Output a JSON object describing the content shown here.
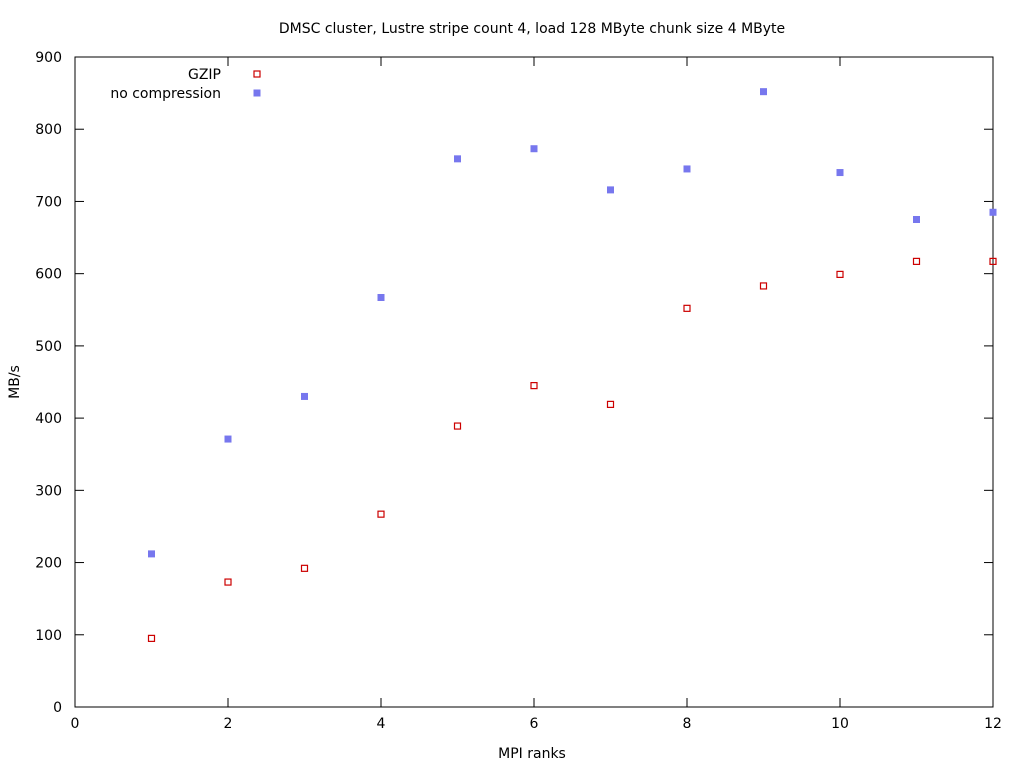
{
  "chart_data": {
    "type": "scatter",
    "title": "DMSC cluster, Lustre stripe count 4, load 128 MByte chunk size 4 MByte",
    "xlabel": "MPI ranks",
    "ylabel": "MB/s",
    "xlim": [
      0,
      12
    ],
    "ylim": [
      0,
      900
    ],
    "xticks": [
      0,
      2,
      4,
      6,
      8,
      10,
      12
    ],
    "yticks": [
      0,
      100,
      200,
      300,
      400,
      500,
      600,
      700,
      800,
      900
    ],
    "grid": false,
    "legend_position": "top-left",
    "series": [
      {
        "name": "GZIP",
        "marker": "open-square",
        "color": "#cc0000",
        "points": [
          [
            1,
            95
          ],
          [
            2,
            173
          ],
          [
            3,
            192
          ],
          [
            4,
            267
          ],
          [
            5,
            389
          ],
          [
            6,
            445
          ],
          [
            7,
            419
          ],
          [
            8,
            552
          ],
          [
            9,
            583
          ],
          [
            10,
            599
          ],
          [
            11,
            617
          ],
          [
            12,
            617
          ]
        ]
      },
      {
        "name": "no compression",
        "marker": "filled-square",
        "color": "#7777ee",
        "points": [
          [
            1,
            212
          ],
          [
            2,
            371
          ],
          [
            3,
            430
          ],
          [
            4,
            567
          ],
          [
            5,
            759
          ],
          [
            6,
            773
          ],
          [
            7,
            716
          ],
          [
            8,
            745
          ],
          [
            9,
            852
          ],
          [
            10,
            740
          ],
          [
            11,
            675
          ],
          [
            12,
            685
          ]
        ]
      }
    ]
  }
}
